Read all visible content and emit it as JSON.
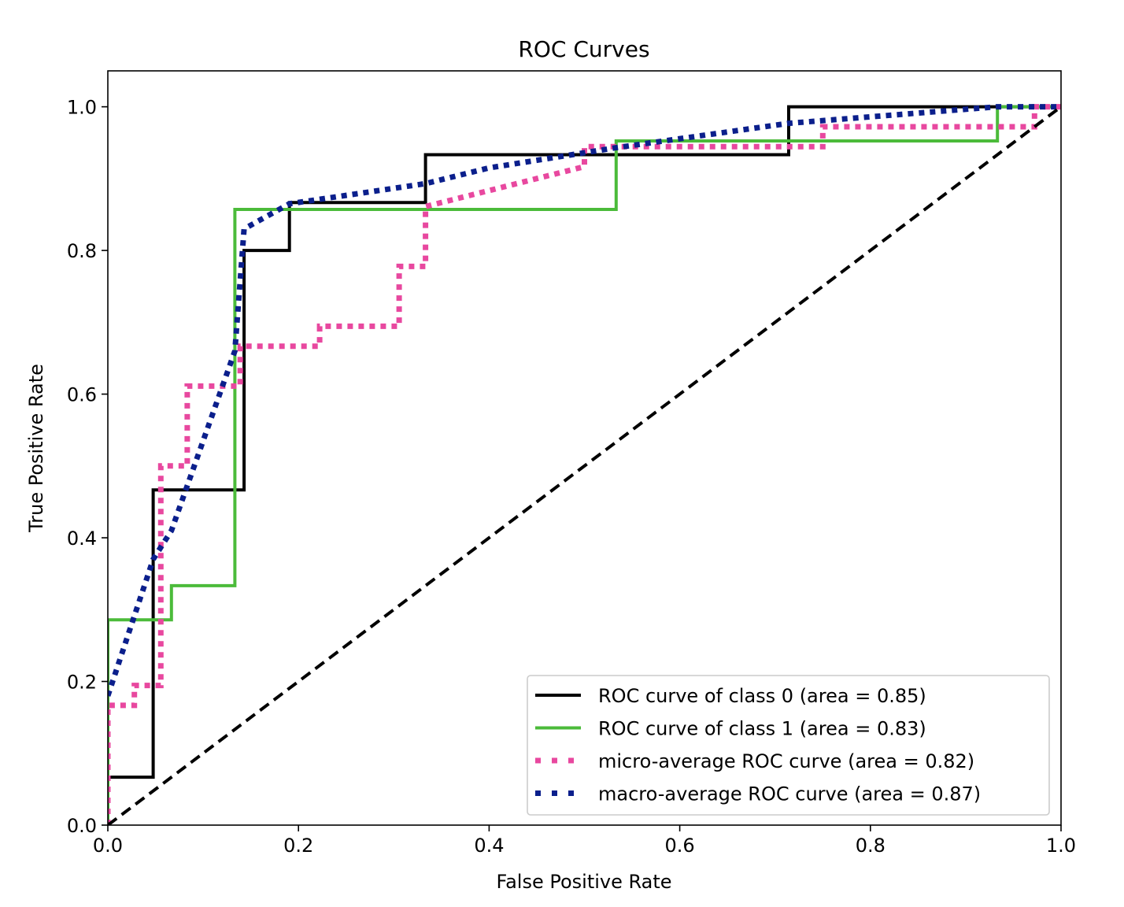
{
  "chart_data": {
    "type": "line",
    "title": "ROC Curves",
    "xlabel": "False Positive Rate",
    "ylabel": "True Positive Rate",
    "xlim": [
      0.0,
      1.0
    ],
    "ylim": [
      0.0,
      1.05
    ],
    "xticks": [
      "0.0",
      "0.2",
      "0.4",
      "0.6",
      "0.8",
      "1.0"
    ],
    "yticks": [
      "0.0",
      "0.2",
      "0.4",
      "0.6",
      "0.8",
      "1.0"
    ],
    "grid": false,
    "legend_position": "lower-right",
    "series": [
      {
        "name": "ROC curve of class 0 (area = 0.85)",
        "color": "#000000",
        "style": "solid",
        "x": [
          0.0,
          0.0,
          0.0476,
          0.0476,
          0.1429,
          0.1429,
          0.1905,
          0.1905,
          0.3333,
          0.3333,
          0.7143,
          0.7143,
          1.0
        ],
        "y": [
          0.0,
          0.0667,
          0.0667,
          0.4667,
          0.4667,
          0.8,
          0.8,
          0.8667,
          0.8667,
          0.9333,
          0.9333,
          1.0,
          1.0
        ]
      },
      {
        "name": "ROC curve of class 1 (area = 0.83)",
        "color": "#4bbb3a",
        "style": "solid",
        "x": [
          0.0,
          0.0,
          0.0667,
          0.0667,
          0.1333,
          0.1333,
          0.5333,
          0.5333,
          0.9333,
          0.9333,
          1.0
        ],
        "y": [
          0.0,
          0.2857,
          0.2857,
          0.3333,
          0.3333,
          0.8571,
          0.8571,
          0.9524,
          0.9524,
          1.0,
          1.0
        ]
      },
      {
        "name": "micro-average ROC curve (area = 0.82)",
        "color": "#e8489f",
        "style": "dotted",
        "x": [
          0.0,
          0.0,
          0.0278,
          0.0278,
          0.0556,
          0.0556,
          0.0833,
          0.0833,
          0.1389,
          0.1389,
          0.2222,
          0.2222,
          0.3056,
          0.3056,
          0.3333,
          0.3333,
          0.5,
          0.5,
          0.75,
          0.75,
          0.9722,
          0.9722,
          1.0
        ],
        "y": [
          0.0,
          0.1667,
          0.1667,
          0.1944,
          0.1944,
          0.5,
          0.5,
          0.6111,
          0.6111,
          0.6667,
          0.6667,
          0.6944,
          0.6944,
          0.7778,
          0.7778,
          0.8611,
          0.9167,
          0.9444,
          0.9444,
          0.9722,
          0.9722,
          1.0,
          1.0
        ]
      },
      {
        "name": "macro-average ROC curve (area = 0.87)",
        "color": "#0b1f8c",
        "style": "dotted",
        "x": [
          0.0,
          0.0476,
          0.0667,
          0.1333,
          0.1429,
          0.1905,
          0.3333,
          0.4,
          0.5333,
          0.7143,
          0.9333,
          1.0
        ],
        "y": [
          0.18,
          0.37,
          0.41,
          0.66,
          0.83,
          0.865,
          0.893,
          0.915,
          0.943,
          0.977,
          1.0,
          1.0
        ]
      },
      {
        "name": "",
        "color": "#000000",
        "style": "dashed",
        "x": [
          0.0,
          1.0
        ],
        "y": [
          0.0,
          1.0
        ]
      }
    ]
  }
}
